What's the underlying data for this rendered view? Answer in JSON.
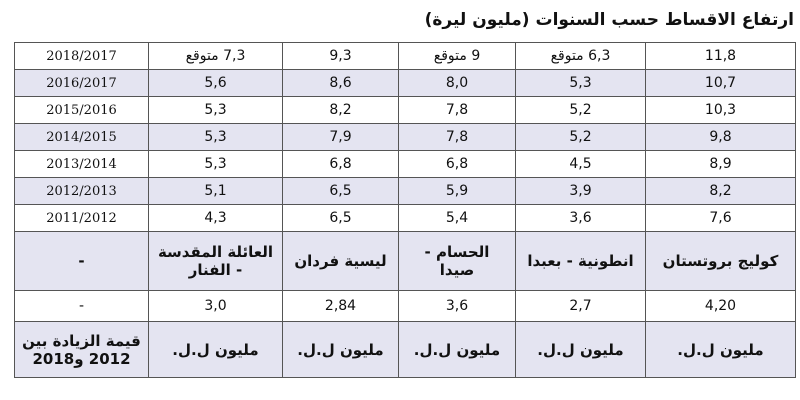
{
  "title": "ارتفاع الاقساط حسب السنوات (مليون ليرة)",
  "table": {
    "rows": [
      [
        "11,8",
        "6,3 متوقع",
        "9 متوقع",
        "9,3",
        "7,3 متوقع",
        "2018/2017"
      ],
      [
        "10,7",
        "5,3",
        "8,0",
        "8,6",
        "5,6",
        "2016/2017"
      ],
      [
        "10,3",
        "5,2",
        "7,8",
        "8,2",
        "5,3",
        "2015/2016"
      ],
      [
        "9,8",
        "5,2",
        "7,8",
        "7,9",
        "5,3",
        "2014/2015"
      ],
      [
        "8,9",
        "4,5",
        "6,8",
        "6,8",
        "5,3",
        "2013/2014"
      ],
      [
        "8,2",
        "3,9",
        "5,9",
        "6,5",
        "5,1",
        "2012/2013"
      ],
      [
        "7,6",
        "3,6",
        "5,4",
        "6,5",
        "4,3",
        "2011/2012"
      ],
      [
        "كوليج بروتستان",
        "انطونية - بعبدا",
        "الحسام - صيدا",
        "ليسية فردان",
        "العائلة المقدسة - الفنار",
        "-"
      ],
      [
        "4,20",
        "2,7",
        "3,6",
        "2,84",
        "3,0",
        "-"
      ],
      [
        "مليون ل.ل.",
        "مليون ل.ل.",
        "مليون ل.ل.",
        "مليون ل.ل.",
        "مليون ل.ل.",
        "قيمة الزيادة بين 2012 و2018"
      ]
    ]
  }
}
